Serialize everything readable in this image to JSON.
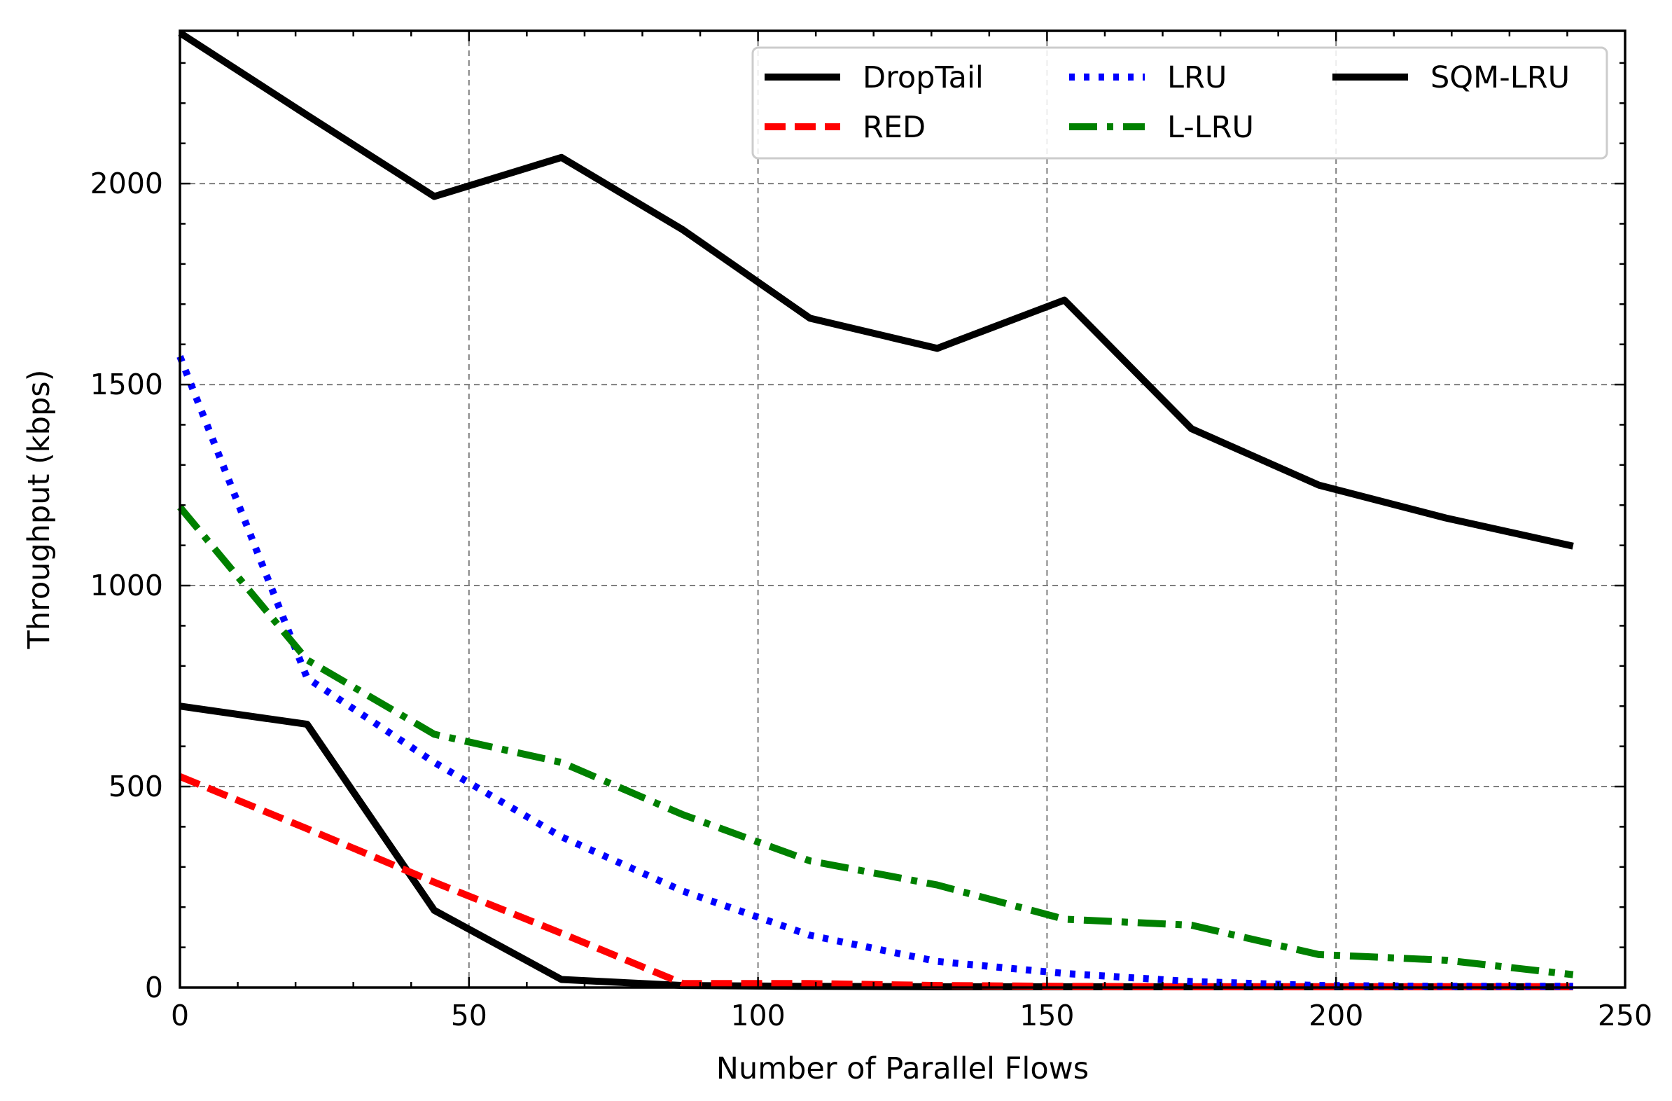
{
  "chart_data": {
    "type": "line",
    "title": "",
    "xlabel": "Number of Parallel Flows",
    "ylabel": "Throughput (kbps)",
    "xlim": [
      0,
      250
    ],
    "ylim": [
      0,
      2380
    ],
    "xticks": [
      0,
      50,
      100,
      150,
      200,
      250
    ],
    "yticks": [
      0,
      500,
      1000,
      1500,
      2000
    ],
    "x_minor_step": 10,
    "y_minor_step": 100,
    "grid": true,
    "legend_position": "top-right",
    "x": [
      0,
      22,
      44,
      66,
      87,
      109,
      131,
      153,
      175,
      197,
      219,
      241
    ],
    "series": [
      {
        "name": "DropTail",
        "color": "#000000",
        "dash": "solid",
        "values": [
          700,
          655,
          192,
          20,
          5,
          3,
          2,
          2,
          2,
          2,
          2,
          2
        ]
      },
      {
        "name": "RED",
        "color": "#ff0000",
        "dash": "dashed",
        "values": [
          525,
          395,
          262,
          135,
          10,
          10,
          5,
          3,
          2,
          2,
          2,
          2
        ]
      },
      {
        "name": "LRU",
        "color": "#0000ff",
        "dash": "dotted",
        "values": [
          1570,
          770,
          560,
          375,
          240,
          130,
          65,
          35,
          15,
          5,
          3,
          3
        ]
      },
      {
        "name": "L-LRU",
        "color": "#008000",
        "dash": "dashdot",
        "values": [
          1195,
          815,
          630,
          560,
          430,
          315,
          255,
          170,
          155,
          82,
          68,
          32
        ]
      },
      {
        "name": "SQM-LRU",
        "color": "#000000",
        "dash": "solid",
        "values": [
          2375,
          2170,
          1968,
          2065,
          1885,
          1665,
          1590,
          1710,
          1390,
          1250,
          1168,
          1098
        ]
      }
    ]
  }
}
